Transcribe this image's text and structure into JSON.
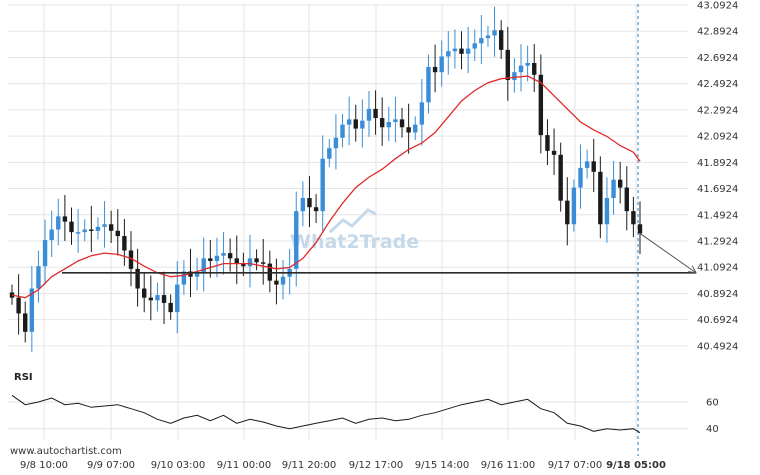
{
  "chart_data": {
    "type": "candlestick",
    "yticks": [
      "43.0924",
      "42.8924",
      "42.6924",
      "42.4924",
      "42.2924",
      "42.0924",
      "41.8924",
      "41.6924",
      "41.4924",
      "41.2924",
      "41.0924",
      "40.8924",
      "40.6924",
      "40.4924"
    ],
    "ylim": [
      40.4,
      43.1
    ],
    "xticks": [
      "9/8 10:00",
      "9/9 07:00",
      "9/10 03:00",
      "9/11 00:00",
      "9/11 20:00",
      "9/12 17:00",
      "9/15 14:00",
      "9/16 11:00",
      "9/17 07:00",
      "9/18 05:00"
    ],
    "support_level": 41.05,
    "projection_target": 41.05,
    "price": [
      [
        0,
        40.86
      ],
      [
        1,
        40.74
      ],
      [
        2,
        40.6
      ],
      [
        3,
        40.93
      ],
      [
        4,
        41.1
      ],
      [
        5,
        41.3
      ],
      [
        6,
        41.38
      ],
      [
        7,
        41.48
      ],
      [
        8,
        41.44
      ],
      [
        9,
        41.36
      ],
      [
        10,
        41.36
      ],
      [
        11,
        41.38
      ],
      [
        12,
        41.37
      ],
      [
        13,
        41.4
      ],
      [
        14,
        41.42
      ],
      [
        15,
        41.37
      ],
      [
        16,
        41.33
      ],
      [
        17,
        41.22
      ],
      [
        18,
        41.08
      ],
      [
        19,
        40.93
      ],
      [
        20,
        40.86
      ],
      [
        21,
        40.84
      ],
      [
        22,
        40.88
      ],
      [
        23,
        40.82
      ],
      [
        24,
        40.75
      ],
      [
        25,
        40.96
      ],
      [
        26,
        41.06
      ],
      [
        27,
        41.02
      ],
      [
        28,
        41.05
      ],
      [
        29,
        41.16
      ],
      [
        30,
        41.14
      ],
      [
        31,
        41.18
      ],
      [
        32,
        41.2
      ],
      [
        33,
        41.16
      ],
      [
        34,
        41.12
      ],
      [
        35,
        41.1
      ],
      [
        36,
        41.16
      ],
      [
        37,
        41.13
      ],
      [
        38,
        41.12
      ],
      [
        39,
        40.99
      ],
      [
        40,
        40.96
      ],
      [
        41,
        41.02
      ],
      [
        42,
        41.08
      ],
      [
        43,
        41.52
      ],
      [
        44,
        41.62
      ],
      [
        45,
        41.55
      ],
      [
        46,
        41.52
      ],
      [
        47,
        41.92
      ],
      [
        48,
        42.0
      ],
      [
        49,
        42.08
      ],
      [
        50,
        42.18
      ],
      [
        51,
        42.22
      ],
      [
        52,
        42.15
      ],
      [
        53,
        42.21
      ],
      [
        54,
        42.3
      ],
      [
        55,
        42.23
      ],
      [
        56,
        42.16
      ],
      [
        57,
        42.2
      ],
      [
        58,
        42.22
      ],
      [
        59,
        42.16
      ],
      [
        60,
        42.12
      ],
      [
        61,
        42.18
      ],
      [
        62,
        42.35
      ],
      [
        63,
        42.62
      ],
      [
        64,
        42.58
      ],
      [
        65,
        42.7
      ],
      [
        66,
        42.74
      ],
      [
        67,
        42.76
      ],
      [
        68,
        42.72
      ],
      [
        69,
        42.76
      ],
      [
        70,
        42.8
      ],
      [
        71,
        42.84
      ],
      [
        72,
        42.86
      ],
      [
        73,
        42.9
      ],
      [
        74,
        42.75
      ],
      [
        75,
        42.52
      ],
      [
        76,
        42.58
      ],
      [
        77,
        42.63
      ],
      [
        78,
        42.65
      ],
      [
        79,
        42.56
      ],
      [
        80,
        42.1
      ],
      [
        81,
        41.98
      ],
      [
        82,
        41.95
      ],
      [
        83,
        41.6
      ],
      [
        84,
        41.42
      ],
      [
        85,
        41.7
      ],
      [
        86,
        41.85
      ],
      [
        87,
        41.9
      ],
      [
        88,
        41.82
      ],
      [
        89,
        41.42
      ],
      [
        90,
        41.62
      ],
      [
        91,
        41.76
      ],
      [
        92,
        41.7
      ],
      [
        93,
        41.52
      ],
      [
        94,
        41.42
      ],
      [
        95,
        41.35
      ]
    ],
    "ma": [
      [
        0,
        40.88
      ],
      [
        2,
        40.86
      ],
      [
        4,
        40.92
      ],
      [
        6,
        41.02
      ],
      [
        8,
        41.08
      ],
      [
        10,
        41.14
      ],
      [
        12,
        41.18
      ],
      [
        14,
        41.2
      ],
      [
        16,
        41.19
      ],
      [
        18,
        41.16
      ],
      [
        20,
        41.1
      ],
      [
        22,
        41.05
      ],
      [
        24,
        41.02
      ],
      [
        26,
        41.03
      ],
      [
        28,
        41.06
      ],
      [
        30,
        41.09
      ],
      [
        32,
        41.12
      ],
      [
        34,
        41.12
      ],
      [
        36,
        41.12
      ],
      [
        38,
        41.1
      ],
      [
        40,
        41.08
      ],
      [
        42,
        41.09
      ],
      [
        44,
        41.16
      ],
      [
        46,
        41.28
      ],
      [
        48,
        41.44
      ],
      [
        50,
        41.58
      ],
      [
        52,
        41.7
      ],
      [
        54,
        41.78
      ],
      [
        56,
        41.84
      ],
      [
        58,
        41.92
      ],
      [
        60,
        41.99
      ],
      [
        62,
        42.04
      ],
      [
        64,
        42.12
      ],
      [
        66,
        42.24
      ],
      [
        68,
        42.36
      ],
      [
        70,
        42.44
      ],
      [
        72,
        42.5
      ],
      [
        74,
        42.53
      ],
      [
        76,
        42.54
      ],
      [
        78,
        42.55
      ],
      [
        80,
        42.5
      ],
      [
        82,
        42.4
      ],
      [
        84,
        42.3
      ],
      [
        86,
        42.2
      ],
      [
        88,
        42.14
      ],
      [
        90,
        42.09
      ],
      [
        92,
        42.02
      ],
      [
        94,
        41.97
      ],
      [
        95,
        41.9
      ]
    ],
    "rsi": {
      "label": "RSI",
      "yticks": [
        "60",
        "40"
      ],
      "ylim": [
        30,
        75
      ],
      "values": [
        [
          0,
          65
        ],
        [
          2,
          58
        ],
        [
          4,
          60
        ],
        [
          6,
          63
        ],
        [
          8,
          58
        ],
        [
          10,
          59
        ],
        [
          12,
          56
        ],
        [
          14,
          57
        ],
        [
          16,
          58
        ],
        [
          18,
          55
        ],
        [
          20,
          52
        ],
        [
          22,
          47
        ],
        [
          24,
          44
        ],
        [
          26,
          48
        ],
        [
          28,
          50
        ],
        [
          30,
          46
        ],
        [
          32,
          50
        ],
        [
          34,
          44
        ],
        [
          36,
          47
        ],
        [
          38,
          45
        ],
        [
          40,
          42
        ],
        [
          42,
          40
        ],
        [
          44,
          42
        ],
        [
          46,
          44
        ],
        [
          48,
          46
        ],
        [
          50,
          48
        ],
        [
          52,
          44
        ],
        [
          54,
          47
        ],
        [
          56,
          48
        ],
        [
          58,
          46
        ],
        [
          60,
          47
        ],
        [
          62,
          50
        ],
        [
          64,
          52
        ],
        [
          66,
          55
        ],
        [
          68,
          58
        ],
        [
          70,
          60
        ],
        [
          72,
          62
        ],
        [
          74,
          58
        ],
        [
          76,
          60
        ],
        [
          78,
          62
        ],
        [
          80,
          55
        ],
        [
          82,
          52
        ],
        [
          84,
          44
        ],
        [
          86,
          42
        ],
        [
          88,
          38
        ],
        [
          90,
          40
        ],
        [
          92,
          39
        ],
        [
          94,
          40
        ],
        [
          95,
          37
        ]
      ]
    }
  },
  "watermark": {
    "text": "What2Trade"
  },
  "credit": "www.autochartist.com",
  "colors": {
    "candle_up": "#3a8ed8",
    "candle_down": "#1b1b1b",
    "ma": "#e02a2a",
    "support": "#2b2b2b",
    "rsi": "#1b1b1b",
    "grid": "#e6e6e6"
  }
}
